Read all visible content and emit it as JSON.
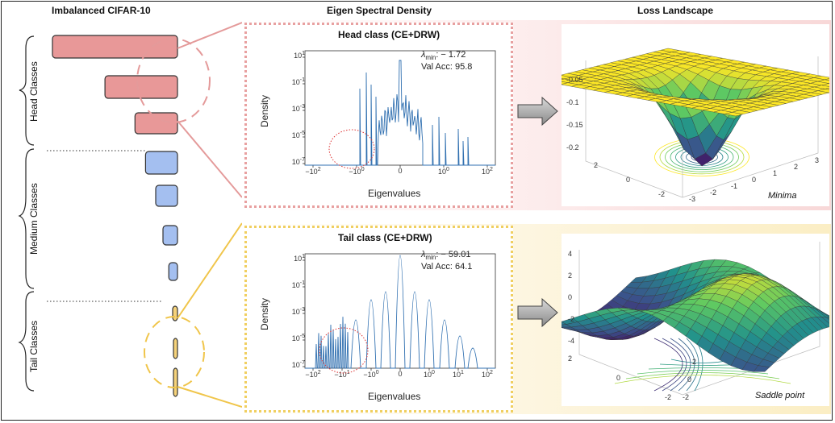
{
  "headers": {
    "imbalanced": "Imbalanced CIFAR-10",
    "spectral": "Eigen Spectral Density",
    "landscape": "Loss Landscape"
  },
  "groups": {
    "head": "Head Classes",
    "medium": "Medium Classes",
    "tail": "Tail Classes"
  },
  "class_bars": {
    "head": [
      1.0,
      0.58,
      0.34
    ],
    "medium": [
      0.22,
      0.15,
      0.1,
      0.06
    ],
    "tail": [
      0.04,
      0.025,
      0.015
    ],
    "colors": {
      "head": "#e89898",
      "medium": "#a4bff0",
      "tail": "#f5d27a"
    }
  },
  "panels": {
    "head": {
      "title": "Head class (CE+DRW)",
      "lambda_label": "λ",
      "lambda_sub": "min",
      "lambda_value": ": − 1.72",
      "acc": "Val Acc: 95.8",
      "border": "#e8a0a0"
    },
    "tail": {
      "title": "Tail class (CE+DRW)",
      "lambda_label": "λ",
      "lambda_sub": "min",
      "lambda_value": ": − 59.01",
      "acc": "Val Acc: 64.1",
      "border": "#f0cf60"
    }
  },
  "axes": {
    "ylabel": "Density",
    "xlabel": "Eigenvalues",
    "yticks": [
      "10^1",
      "10^-1",
      "10^-3",
      "10^-5",
      "10^-7"
    ],
    "xticks": [
      "−10^2",
      "−10^0",
      "0",
      "10^0",
      "10^2"
    ],
    "xticks_tail": [
      "−10^2",
      "−10^1",
      "−10^0",
      "0",
      "10^0",
      "10^1",
      "10^2"
    ]
  },
  "surfaces": {
    "minima": {
      "label": "Minima",
      "zticks": [
        "-0.05",
        "-0.1",
        "-0.15",
        "-0.2"
      ],
      "xticks": [
        "2",
        "0",
        "-2"
      ],
      "yticks": [
        "-3",
        "-2",
        "-1",
        "0",
        "1",
        "2",
        "3"
      ]
    },
    "saddle": {
      "label": "Saddle point",
      "zticks": [
        "4",
        "2",
        "0",
        "-2",
        "-4"
      ],
      "xticks": [
        "2",
        "0",
        "-2"
      ],
      "yticks": [
        "-2",
        "0",
        "2"
      ]
    }
  },
  "chart_data": [
    {
      "type": "line",
      "title": "Head class (CE+DRW)",
      "xlabel": "Eigenvalues",
      "ylabel": "Density",
      "yscale": "log",
      "ylim": [
        "1e-7",
        "1e2"
      ],
      "xscale": "symlog",
      "xlim": [
        -200,
        200
      ],
      "series": [
        {
          "values": [
            [
              -0.8,
              "1e-7"
            ],
            [
              -0.5,
              "1e-5"
            ],
            [
              -0.3,
              "1e-6"
            ],
            [
              -0.1,
              "1e-3"
            ],
            [
              -0.05,
              "1e-4"
            ],
            [
              0,
              "1e1"
            ],
            [
              0.05,
              "1e-3"
            ],
            [
              0.1,
              "1e-4"
            ],
            [
              0.5,
              "1e-4"
            ],
            [
              1,
              "1e-5"
            ],
            [
              3,
              "1e-6"
            ],
            [
              10,
              "1e-5"
            ],
            [
              30,
              "1e-6"
            ]
          ]
        }
      ]
    },
    {
      "type": "line",
      "title": "Tail class (CE+DRW)",
      "xlabel": "Eigenvalues",
      "ylabel": "Density",
      "yscale": "log",
      "ylim": [
        "1e-7",
        "1e2"
      ],
      "xscale": "symlog",
      "xlim": [
        -200,
        200
      ],
      "series": [
        {
          "values": [
            [
              -60,
              "1e-5"
            ],
            [
              -30,
              "1e-6"
            ],
            [
              -10,
              "1e-5"
            ],
            [
              -3,
              "1e-4"
            ],
            [
              -1,
              "1e-3"
            ],
            [
              -0.3,
              "1e-2"
            ],
            [
              0,
              "1e1"
            ],
            [
              0.3,
              "1e-2"
            ],
            [
              1,
              "1e-3"
            ],
            [
              3,
              "1e-3"
            ],
            [
              10,
              "1e-4"
            ],
            [
              30,
              "1e-5"
            ],
            [
              100,
              "1e-6"
            ]
          ]
        }
      ]
    }
  ]
}
